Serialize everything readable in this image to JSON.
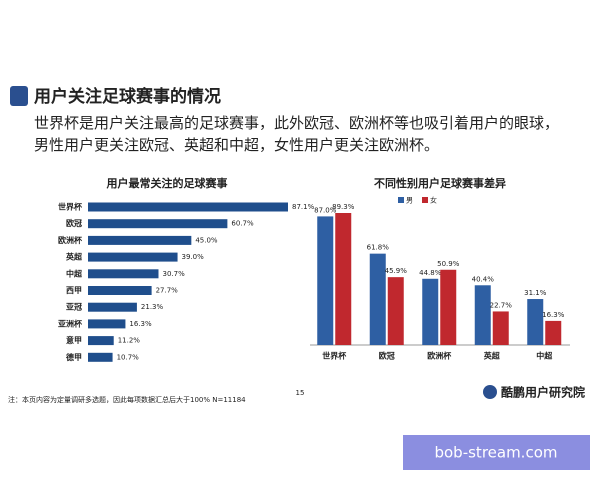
{
  "header": {
    "title": "用户关注足球赛事的情况",
    "description": "世界杯是用户关注最高的足球赛事，此外欧冠、欧洲杯等也吸引着用户的眼球，男性用户更关注欧冠、英超和中超，女性用户更关注欧洲杯。"
  },
  "chart_data": [
    {
      "type": "hbar",
      "title": "用户最常关注的足球赛事",
      "color": "#1f4e8c",
      "categories": [
        "世界杯",
        "欧冠",
        "欧洲杯",
        "英超",
        "中超",
        "西甲",
        "亚冠",
        "亚洲杯",
        "意甲",
        "德甲"
      ],
      "values": [
        87.1,
        60.7,
        45.0,
        39.0,
        30.7,
        27.7,
        21.3,
        16.3,
        11.2,
        10.7
      ],
      "value_labels": [
        "87.1%",
        "60.7%",
        "45.0%",
        "39.0%",
        "30.7%",
        "27.7%",
        "21.3%",
        "16.3%",
        "11.2%",
        "10.7%"
      ]
    },
    {
      "type": "grouped-bar",
      "title": "不同性别用户足球赛事差异",
      "categories": [
        "世界杯",
        "欧冠",
        "欧洲杯",
        "英超",
        "中超"
      ],
      "series": [
        {
          "name": "男",
          "color": "#2e5fa3",
          "values": [
            87.0,
            61.8,
            44.8,
            40.4,
            31.1
          ],
          "value_labels": [
            "87.0%",
            "61.8%",
            "44.8%",
            "40.4%",
            "31.1%"
          ]
        },
        {
          "name": "女",
          "color": "#c0282e",
          "values": [
            89.3,
            45.9,
            50.9,
            22.7,
            16.3
          ],
          "value_labels": [
            "89.3%",
            "45.9%",
            "50.9%",
            "22.7%",
            "16.3%"
          ]
        }
      ]
    }
  ],
  "footnote": "注：本页内容为定量调研多选题，因此每项数据汇总后大于100%  N=11184",
  "page_number": "15",
  "logo": "酷鹏用户研究院",
  "watermark": "bob-stream.com"
}
